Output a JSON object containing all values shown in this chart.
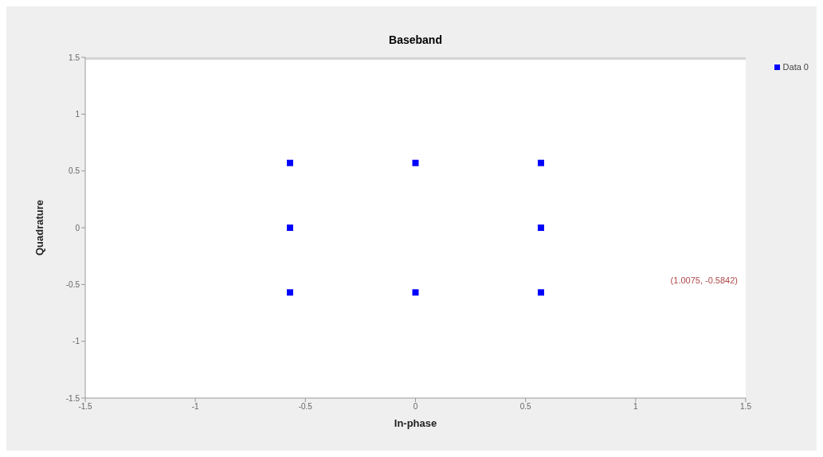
{
  "chart_data": {
    "type": "scatter",
    "title": "Baseband",
    "xlabel": "In-phase",
    "ylabel": "Quadrature",
    "x": [
      -0.57,
      -0.57,
      -0.57,
      0,
      0,
      0.57,
      0.57,
      0.57
    ],
    "series": [
      {
        "name": "Data 0",
        "color": "#0000ff",
        "values": [
          0.57,
          0,
          -0.57,
          0.57,
          -0.57,
          0.57,
          0,
          -0.57
        ]
      }
    ],
    "xlim": [
      -1.5,
      1.5
    ],
    "xticks": [
      -1.5,
      -1,
      -0.5,
      0,
      0.5,
      1,
      1.5
    ],
    "ylim": [
      -1.5,
      1.5
    ],
    "yticks": [
      -1.5,
      -1,
      -0.5,
      0,
      0.5,
      1,
      1.5
    ],
    "marker": "square",
    "legend": "top right",
    "annotations": [
      "(1.0075, -0.5842)"
    ]
  }
}
